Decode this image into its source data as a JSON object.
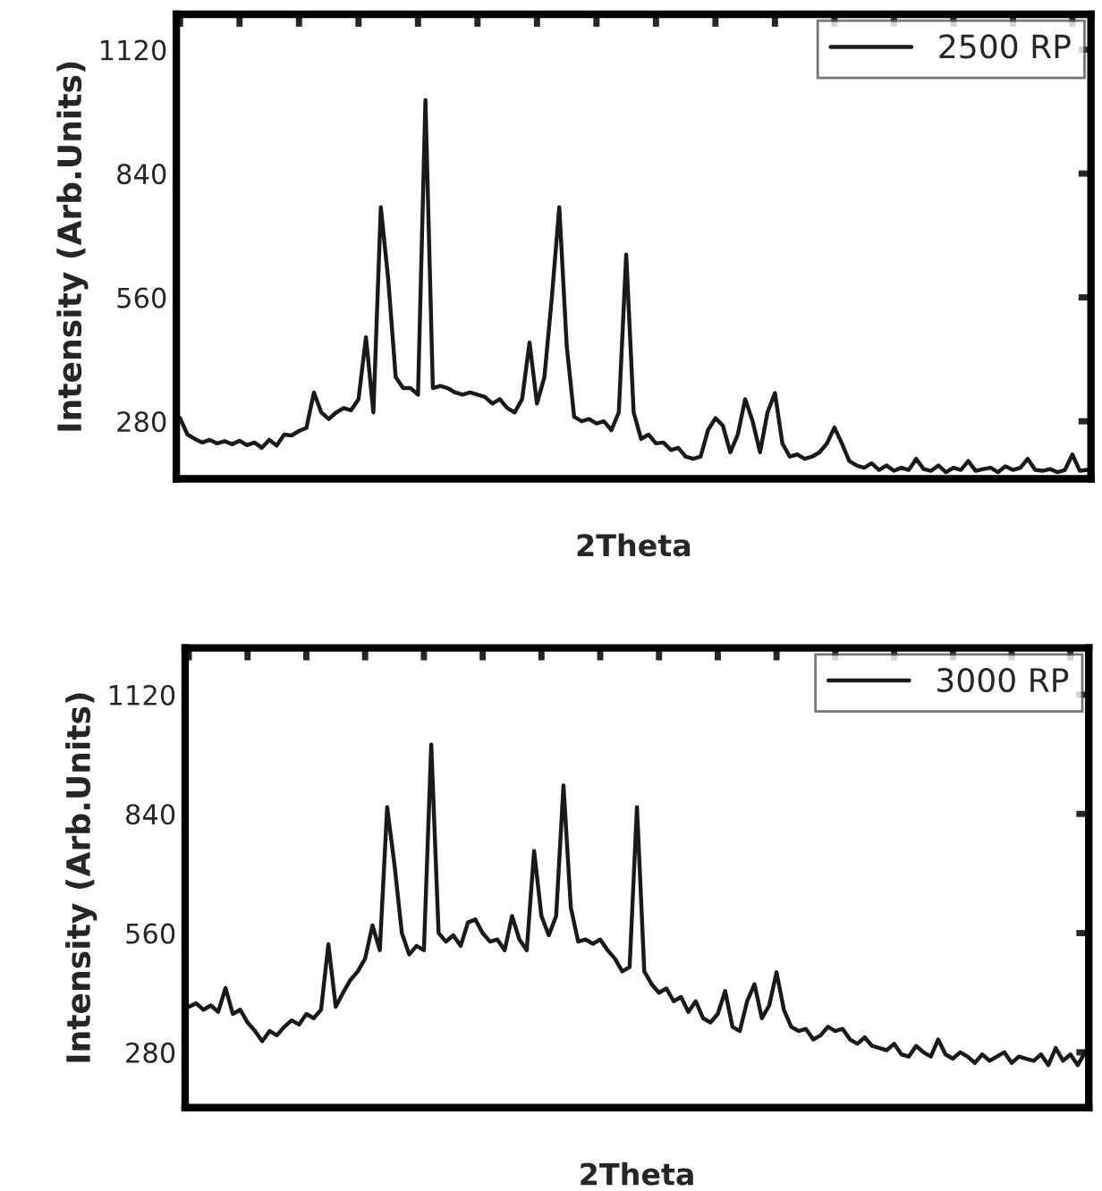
{
  "chart_data": [
    {
      "type": "line",
      "xlabel": "2Theta",
      "ylabel": "Intensity (Arb.Units)",
      "ylim": [
        150,
        1200
      ],
      "yticks": [
        280,
        560,
        840,
        1120
      ],
      "tick_labels": "y",
      "legend": "top right",
      "marker": "none",
      "line_style": "solid",
      "categories": [
        null,
        null,
        null,
        null,
        null,
        null,
        null,
        null,
        null,
        null,
        null,
        null,
        null,
        null,
        null,
        null,
        null,
        null,
        null,
        null,
        null,
        null,
        null,
        null,
        null,
        null,
        null,
        null,
        null,
        null,
        null,
        null,
        null,
        null,
        null,
        null,
        null,
        null,
        null,
        null,
        null,
        null,
        null,
        null,
        null,
        null,
        null,
        null,
        null,
        null,
        null,
        null,
        null,
        null,
        null,
        null,
        null,
        null,
        null,
        null,
        null,
        null,
        null,
        null,
        null,
        null,
        null,
        null,
        null,
        null,
        null,
        null,
        null,
        null,
        null,
        null,
        null,
        null,
        null,
        null,
        null,
        null,
        null,
        null,
        null,
        null,
        null,
        null,
        null,
        null,
        null,
        null,
        null,
        null,
        null,
        null,
        null,
        null,
        null,
        null,
        null,
        null,
        null,
        null,
        null,
        null,
        null,
        null,
        null,
        null,
        null,
        null,
        null,
        null,
        null,
        null,
        null,
        null,
        null,
        null,
        null,
        null,
        null
      ],
      "series": [
        {
          "name": "2500 RP",
          "color": "#1a1a1a",
          "values": [
            287,
            250,
            240,
            232,
            238,
            230,
            235,
            228,
            236,
            226,
            232,
            220,
            238,
            225,
            250,
            248,
            258,
            265,
            345,
            300,
            285,
            300,
            310,
            305,
            330,
            470,
            300,
            764,
            600,
            380,
            355,
            355,
            340,
            1006,
            355,
            360,
            355,
            345,
            340,
            345,
            340,
            335,
            320,
            330,
            310,
            300,
            330,
            458,
            320,
            380,
            560,
            764,
            450,
            290,
            280,
            285,
            275,
            280,
            260,
            300,
            657,
            300,
            240,
            250,
            230,
            232,
            215,
            220,
            200,
            195,
            200,
            260,
            287,
            270,
            210,
            250,
            330,
            280,
            210,
            300,
            344,
            230,
            200,
            205,
            195,
            200,
            210,
            230,
            266,
            230,
            190,
            180,
            175,
            185,
            170,
            180,
            168,
            175,
            170,
            195,
            172,
            168,
            180,
            165,
            175,
            170,
            190,
            168,
            172,
            175,
            165,
            178,
            170,
            175,
            195,
            170,
            168,
            172,
            165,
            170,
            205,
            168,
            170
          ]
        }
      ]
    },
    {
      "type": "line",
      "xlabel": "2Theta",
      "ylabel": "Intensity (Arb.Units)",
      "ylim": [
        150,
        1230
      ],
      "yticks": [
        280,
        560,
        840,
        1120
      ],
      "tick_labels": "y",
      "legend": "top right",
      "marker": "none",
      "line_style": "solid",
      "categories": [
        null,
        null,
        null,
        null,
        null,
        null,
        null,
        null,
        null,
        null,
        null,
        null,
        null,
        null,
        null,
        null,
        null,
        null,
        null,
        null,
        null,
        null,
        null,
        null,
        null,
        null,
        null,
        null,
        null,
        null,
        null,
        null,
        null,
        null,
        null,
        null,
        null,
        null,
        null,
        null,
        null,
        null,
        null,
        null,
        null,
        null,
        null,
        null,
        null,
        null,
        null,
        null,
        null,
        null,
        null,
        null,
        null,
        null,
        null,
        null,
        null,
        null,
        null,
        null,
        null,
        null,
        null,
        null,
        null,
        null,
        null,
        null,
        null,
        null,
        null,
        null,
        null,
        null,
        null,
        null,
        null,
        null,
        null,
        null,
        null,
        null,
        null,
        null,
        null,
        null,
        null,
        null,
        null,
        null,
        null,
        null,
        null,
        null,
        null,
        null,
        null,
        null,
        null,
        null,
        null,
        null,
        null,
        null,
        null,
        null,
        null,
        null,
        null,
        null,
        null,
        null,
        null,
        null,
        null,
        null,
        null,
        null,
        null
      ],
      "series": [
        {
          "name": "3000 RP",
          "color": "#1a1a1a",
          "values": [
            387,
            395,
            380,
            390,
            375,
            431,
            370,
            380,
            350,
            330,
            306,
            330,
            320,
            340,
            355,
            345,
            370,
            360,
            380,
            534,
            387,
            420,
            450,
            470,
            500,
            578,
            520,
            856,
            720,
            560,
            510,
            530,
            520,
            1003,
            560,
            540,
            555,
            530,
            585,
            592,
            560,
            540,
            545,
            520,
            600,
            545,
            520,
            753,
            600,
            555,
            600,
            907,
            620,
            540,
            545,
            535,
            545,
            520,
            500,
            470,
            480,
            856,
            470,
            440,
            420,
            430,
            400,
            410,
            375,
            400,
            360,
            350,
            370,
            424,
            340,
            330,
            400,
            440,
            360,
            390,
            468,
            380,
            340,
            330,
            335,
            310,
            320,
            340,
            330,
            335,
            310,
            300,
            315,
            295,
            290,
            285,
            300,
            275,
            270,
            295,
            280,
            270,
            310,
            275,
            265,
            280,
            270,
            255,
            275,
            260,
            270,
            280,
            255,
            270,
            265,
            260,
            275,
            250,
            290,
            260,
            275,
            250,
            280
          ]
        }
      ]
    }
  ]
}
